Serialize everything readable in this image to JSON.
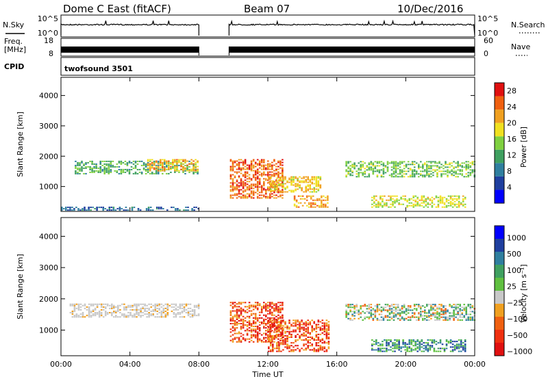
{
  "header": {
    "station": "Dome C East (fitACF)",
    "beam": "Beam 07",
    "date": "10/Dec/2016"
  },
  "side_labels": {
    "nsky": "N.Sky",
    "freq_line1": "Freq.",
    "freq_line2": "[MHz]",
    "cpid": "CPID",
    "nsearch": "N.Search",
    "nave": "Nave"
  },
  "noise_axis": {
    "left_top": "10^5",
    "left_bottom": "10^0",
    "right_top": "10^5",
    "right_bottom": "10^0"
  },
  "freq_axis": {
    "left_top": "18",
    "left_bottom": "8",
    "right_top": "60",
    "right_bottom": "0"
  },
  "cpid_text": "twofsound 3501",
  "colors": {
    "power": [
      "#0000ff",
      "#1f3f9f",
      "#2f7f9f",
      "#3fa060",
      "#7fd040",
      "#f0e020",
      "#f0a020",
      "#f06010",
      "#e01010"
    ],
    "velocity": [
      "#e01010",
      "#f03010",
      "#f06010",
      "#f0a020",
      "#c8c8c8",
      "#60c040",
      "#3fa060",
      "#2f7f9f",
      "#1f3f9f",
      "#0000ff"
    ]
  },
  "chart_data": [
    {
      "type": "heatmap",
      "panel": "power",
      "xlabel": "",
      "ylabel": "Slant Range [km]",
      "xlim": [
        0,
        24
      ],
      "ylim": [
        180,
        4600
      ],
      "yticks": [
        1000,
        2000,
        3000,
        4000
      ],
      "colorbar": {
        "label": "Power [dB]",
        "range": [
          0,
          30
        ],
        "ticks": [
          "4",
          "8",
          "12",
          "16",
          "20",
          "24",
          "28"
        ]
      },
      "data_gap_hours": [
        8.0,
        9.75
      ],
      "echo_regions": [
        {
          "t": [
            0.8,
            8.0
          ],
          "r": [
            1400,
            1850
          ],
          "level": 12
        },
        {
          "t": [
            5.0,
            8.0
          ],
          "r": [
            1500,
            1900
          ],
          "level": 22
        },
        {
          "t": [
            0.0,
            8.0
          ],
          "r": [
            200,
            300
          ],
          "level": 6
        },
        {
          "t": [
            9.8,
            12.8
          ],
          "r": [
            600,
            1900
          ],
          "level": 26
        },
        {
          "t": [
            12.0,
            15.0
          ],
          "r": [
            800,
            1300
          ],
          "level": 20
        },
        {
          "t": [
            13.5,
            15.5
          ],
          "r": [
            300,
            700
          ],
          "level": 22
        },
        {
          "t": [
            16.5,
            24.0
          ],
          "r": [
            1300,
            1800
          ],
          "level": 14
        },
        {
          "t": [
            18.0,
            23.5
          ],
          "r": [
            300,
            700
          ],
          "level": 18
        }
      ]
    },
    {
      "type": "heatmap",
      "panel": "velocity",
      "xlabel": "Time UT",
      "ylabel": "Slant Range [km]",
      "xlim": [
        0,
        24
      ],
      "ylim": [
        180,
        4600
      ],
      "yticks": [
        1000,
        2000,
        3000,
        4000
      ],
      "xticks": [
        "00:00",
        "04:00",
        "08:00",
        "12:00",
        "16:00",
        "20:00",
        "00:00"
      ],
      "colorbar": {
        "label": "Velocity [m s⁻¹]",
        "ticks": [
          "1000",
          "500",
          "100",
          "25",
          "−25",
          "−100",
          "−500",
          "−1000"
        ]
      },
      "data_gap_hours": [
        8.0,
        9.75
      ],
      "echo_regions": [
        {
          "t": [
            0.5,
            8.0
          ],
          "r": [
            1400,
            1850
          ],
          "level": "ground"
        },
        {
          "t": [
            9.8,
            12.8
          ],
          "r": [
            600,
            1900
          ],
          "level": "negative"
        },
        {
          "t": [
            12.0,
            15.5
          ],
          "r": [
            300,
            1300
          ],
          "level": "negative"
        },
        {
          "t": [
            16.5,
            24.0
          ],
          "r": [
            1300,
            1800
          ],
          "level": "mixed"
        },
        {
          "t": [
            18.0,
            23.5
          ],
          "r": [
            300,
            700
          ],
          "level": "positive"
        }
      ]
    }
  ]
}
